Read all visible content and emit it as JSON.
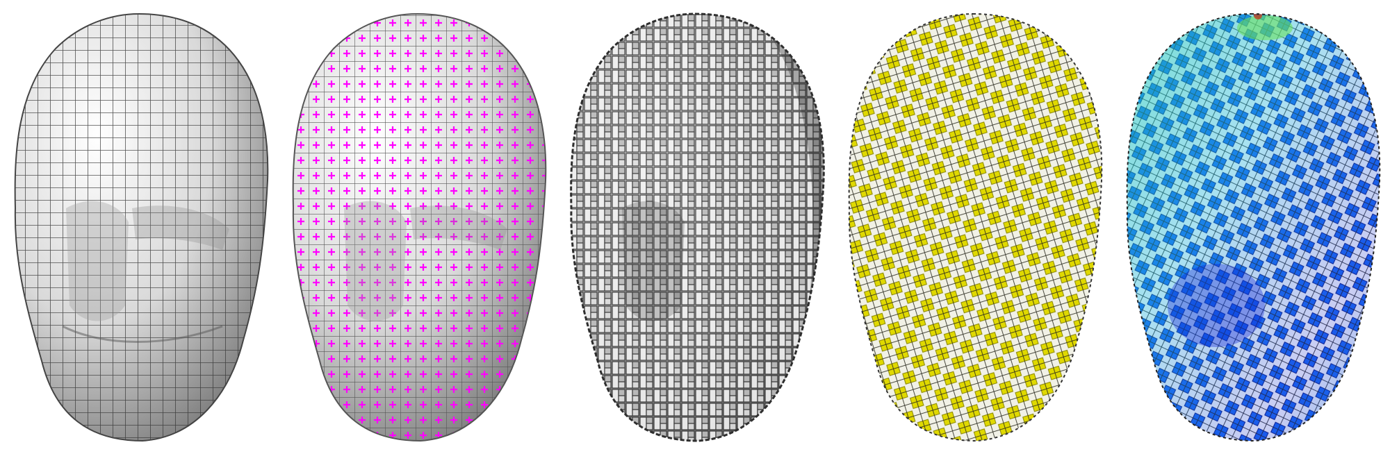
{
  "figure": {
    "panels": [
      {
        "id": "quad-mesh",
        "surface": "#d4d4d4",
        "accent": "#3a3a3a"
      },
      {
        "id": "cross-field",
        "surface": "#dcdcdc",
        "accent": "#ff00ff"
      },
      {
        "id": "woven-tiles",
        "surface": "#c8c8c8",
        "accent": "#4a4a4a"
      },
      {
        "id": "yellow-tiles",
        "surface": "#ffffff",
        "accent": "#e8e000"
      },
      {
        "id": "colormap-tiles",
        "surface": "#ffffff",
        "accent": "#1a4cff",
        "colormap": [
          "#0a1ed8",
          "#1f6af0",
          "#12b4e0",
          "#20d0b0",
          "#6ae060",
          "#c04020"
        ]
      }
    ]
  }
}
